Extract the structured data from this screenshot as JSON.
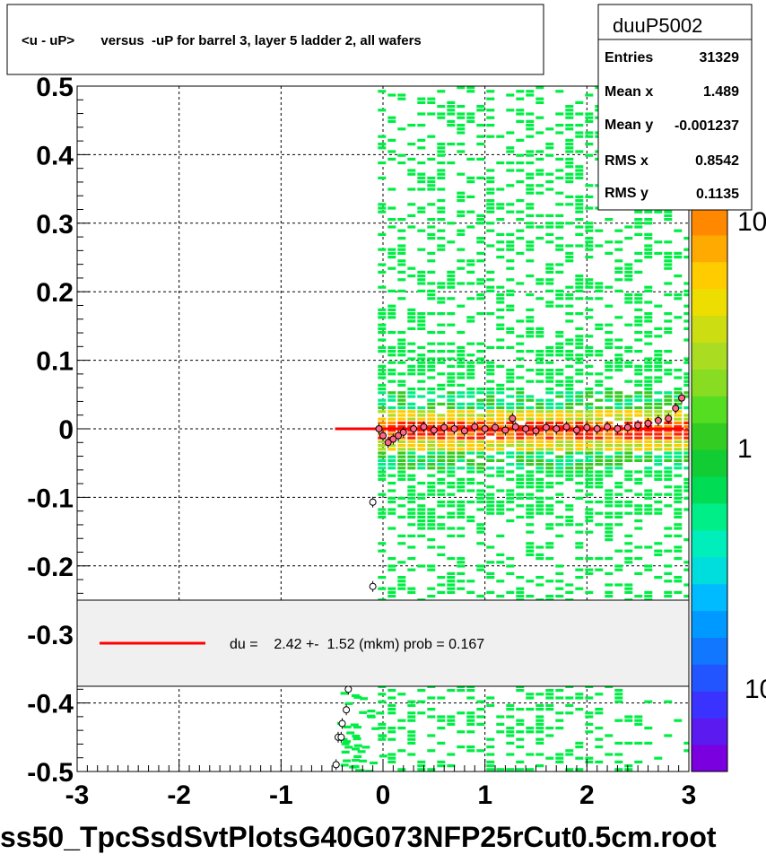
{
  "title": "<u - uP>       versus  -uP for barrel 3, layer 5 ladder 2, all wafers",
  "footer": "ss50_TpcSsdSvtPlotsG40G073NFP25rCut0.5cm.root",
  "stats": {
    "name": "duuP5002",
    "rows": [
      {
        "label": "Entries",
        "value": "31329"
      },
      {
        "label": "Mean x",
        "value": "1.489"
      },
      {
        "label": "Mean y",
        "value": "-0.001237"
      },
      {
        "label": "RMS x",
        "value": "0.8542"
      },
      {
        "label": "RMS y",
        "value": "0.1135"
      }
    ]
  },
  "legend": {
    "text": "du =    2.42 +-  1.52 (mkm) prob = 0.167",
    "line_color": "#ff0000"
  },
  "colorbar": {
    "labels": [
      "10",
      "1",
      "10"
    ],
    "colors": [
      "#7a00e0",
      "#5a1af0",
      "#3a33ff",
      "#2255ff",
      "#1177ff",
      "#0099ff",
      "#00bbff",
      "#00dddd",
      "#00eebb",
      "#00ee88",
      "#00dd55",
      "#11cc33",
      "#33cc22",
      "#55dd22",
      "#88dd22",
      "#aadd22",
      "#ccdd11",
      "#eedd00",
      "#ffcc00",
      "#ffaa00",
      "#ff8800"
    ]
  },
  "chart_data": {
    "type": "heatmap",
    "title": "<u - uP>       versus  -uP for barrel 3, layer 5 ladder 2, all wafers",
    "xlim": [
      -3,
      3
    ],
    "ylim": [
      -0.5,
      0.5
    ],
    "x_ticks": [
      -3,
      -2,
      -1,
      0,
      1,
      2,
      3
    ],
    "x_tick_labels": [
      "-3",
      "-2",
      "-1",
      "0",
      "1",
      "2",
      "3"
    ],
    "y_ticks": [
      -0.5,
      -0.4,
      -0.3,
      -0.2,
      -0.1,
      0,
      0.1,
      0.2,
      0.3,
      0.4,
      0.5
    ],
    "y_tick_labels": [
      "-0.5",
      "-0.4",
      "-0.3",
      "-0.2",
      "-0.1",
      "0",
      "0.1",
      "0.2",
      "0.3",
      "0.4",
      "0.5"
    ],
    "grid": true,
    "z_scale": "log",
    "occupied_x_range": [
      -0.05,
      2.95
    ],
    "fit_line": {
      "x": [
        -0.47,
        2.95
      ],
      "y": [
        0.0,
        0.0
      ],
      "color": "#ff0000"
    },
    "profile_points": [
      {
        "x": -0.46,
        "y": -0.49
      },
      {
        "x": -0.44,
        "y": -0.45
      },
      {
        "x": -0.41,
        "y": -0.45
      },
      {
        "x": -0.4,
        "y": -0.43
      },
      {
        "x": -0.36,
        "y": -0.41
      },
      {
        "x": -0.34,
        "y": -0.38
      },
      {
        "x": -0.1,
        "y": -0.23
      },
      {
        "x": -0.1,
        "y": -0.107
      },
      {
        "x": -0.04,
        "y": 0.0
      },
      {
        "x": 0.0,
        "y": -0.01
      },
      {
        "x": 0.05,
        "y": -0.02
      },
      {
        "x": 0.1,
        "y": -0.015
      },
      {
        "x": 0.15,
        "y": -0.01
      },
      {
        "x": 0.2,
        "y": -0.005
      },
      {
        "x": 0.3,
        "y": 0.0
      },
      {
        "x": 0.4,
        "y": 0.003
      },
      {
        "x": 0.5,
        "y": -0.002
      },
      {
        "x": 0.6,
        "y": 0.002
      },
      {
        "x": 0.7,
        "y": 0.0
      },
      {
        "x": 0.8,
        "y": -0.003
      },
      {
        "x": 0.9,
        "y": 0.003
      },
      {
        "x": 1.0,
        "y": 0.0
      },
      {
        "x": 1.1,
        "y": 0.002
      },
      {
        "x": 1.2,
        "y": -0.002
      },
      {
        "x": 1.27,
        "y": 0.015
      },
      {
        "x": 1.3,
        "y": 0.003
      },
      {
        "x": 1.4,
        "y": 0.0
      },
      {
        "x": 1.5,
        "y": -0.003
      },
      {
        "x": 1.6,
        "y": 0.002
      },
      {
        "x": 1.7,
        "y": 0.0
      },
      {
        "x": 1.8,
        "y": 0.003
      },
      {
        "x": 1.9,
        "y": -0.002
      },
      {
        "x": 2.0,
        "y": 0.002
      },
      {
        "x": 2.1,
        "y": 0.0
      },
      {
        "x": 2.2,
        "y": 0.003
      },
      {
        "x": 2.3,
        "y": 0.0
      },
      {
        "x": 2.4,
        "y": 0.002
      },
      {
        "x": 2.5,
        "y": 0.005
      },
      {
        "x": 2.6,
        "y": 0.008
      },
      {
        "x": 2.7,
        "y": 0.012
      },
      {
        "x": 2.8,
        "y": 0.015
      },
      {
        "x": 2.87,
        "y": 0.03
      },
      {
        "x": 2.93,
        "y": 0.045
      }
    ]
  }
}
